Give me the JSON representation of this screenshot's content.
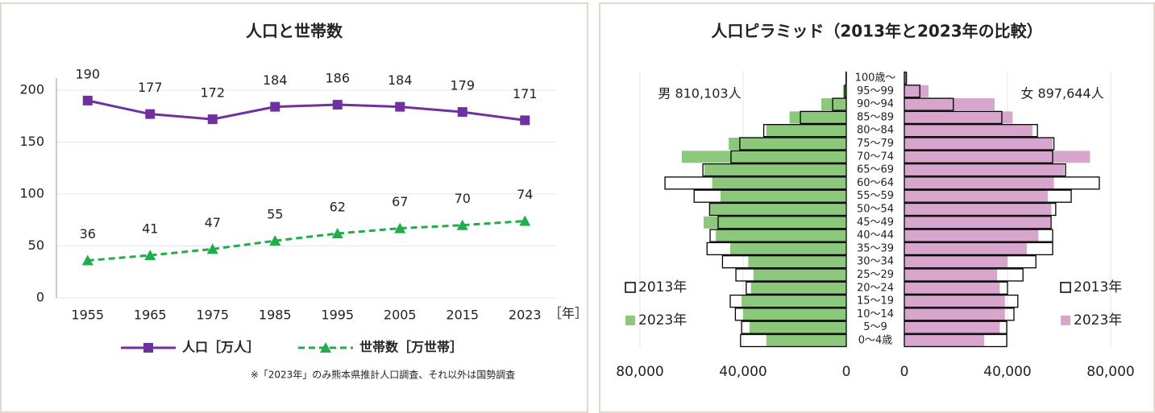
{
  "chart_data": [
    {
      "type": "line",
      "title": "人口と世帯数",
      "categories": [
        "1955",
        "1965",
        "1975",
        "1985",
        "1995",
        "2005",
        "2015",
        "2023"
      ],
      "x_unit": "［年］",
      "series": [
        {
          "name": "人口［万人］",
          "color": "#7030a0",
          "marker": "square",
          "line_style": "solid",
          "values": [
            190,
            177,
            172,
            184,
            186,
            184,
            179,
            171
          ]
        },
        {
          "name": "世帯数［万世帯］",
          "color": "#22ac4a",
          "marker": "triangle",
          "line_style": "dashed",
          "values": [
            36,
            41,
            47,
            55,
            62,
            67,
            70,
            74
          ]
        }
      ],
      "ylim": [
        0,
        200
      ],
      "yticks": [
        0,
        50,
        100,
        150,
        200
      ],
      "grid": true,
      "note": "※「2023年」のみ熊本県推計人口調査、それ以外は国勢調査"
    },
    {
      "type": "pyramid",
      "title": "人口ピラミッド（2013年と2023年の比較）",
      "categories": [
        "0～4歳",
        "5～9",
        "10～14",
        "15～19",
        "20～24",
        "25～29",
        "30～34",
        "35～39",
        "40～44",
        "45～49",
        "50～54",
        "55～59",
        "60～64",
        "65～69",
        "70～74",
        "75～79",
        "80～84",
        "85～89",
        "90～94",
        "95～99",
        "100歳～"
      ],
      "male": {
        "label": "男 810,103人",
        "xlim": [
          0,
          80000
        ],
        "xticks": [
          0,
          {
            "value": 40000,
            "label": "40,000"
          },
          {
            "value": 80000,
            "label": "80,000"
          }
        ],
        "series": [
          {
            "name": "2013年",
            "color": "#000000",
            "style": "outline",
            "values": [
              41000,
              40600,
              43000,
              45000,
              38800,
              42800,
              48000,
              54000,
              52800,
              49700,
              53000,
              59000,
              70300,
              55600,
              44700,
              41300,
              32000,
              17800,
              5300,
              600,
              100
            ]
          },
          {
            "name": "2023年",
            "color": "#8cc87c",
            "style": "fill",
            "values": [
              31000,
              37500,
              40000,
              40600,
              37000,
              36000,
              38000,
              45000,
              50600,
              55300,
              53000,
              48800,
              52000,
              55000,
              63800,
              45600,
              31000,
              22000,
              9700,
              1300,
              200
            ]
          }
        ]
      },
      "female": {
        "label": "女 897,644人",
        "xlim": [
          0,
          80000
        ],
        "xticks": [
          0,
          {
            "value": 40000,
            "label": "40,000"
          },
          {
            "value": 80000,
            "label": "80,000"
          }
        ],
        "series": [
          {
            "name": "2013年",
            "color": "#000000",
            "style": "outline",
            "values": [
              39700,
              39700,
              42500,
              44000,
              40000,
              46000,
              51000,
              57500,
              57500,
              56900,
              58700,
              64700,
              75600,
              62500,
              57500,
              58000,
              51600,
              37800,
              19000,
              6000,
              700
            ]
          },
          {
            "name": "2023年",
            "color": "#d8a5cc",
            "style": "fill",
            "values": [
              31000,
              37000,
              39000,
              39000,
              37000,
              36000,
              40000,
              47500,
              52000,
              56600,
              57000,
              55600,
              58000,
              62000,
              72000,
              57500,
              49700,
              42000,
              35000,
              9400,
              1300
            ]
          }
        ]
      }
    }
  ]
}
